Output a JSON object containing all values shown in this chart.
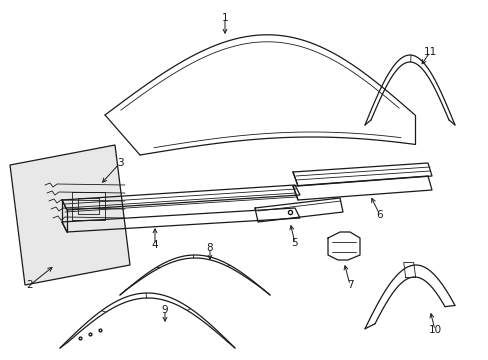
{
  "background_color": "#ffffff",
  "line_color": "#1a1a1a",
  "lw": 0.9,
  "tlw": 0.6,
  "fig_width": 4.89,
  "fig_height": 3.6,
  "dpi": 100
}
